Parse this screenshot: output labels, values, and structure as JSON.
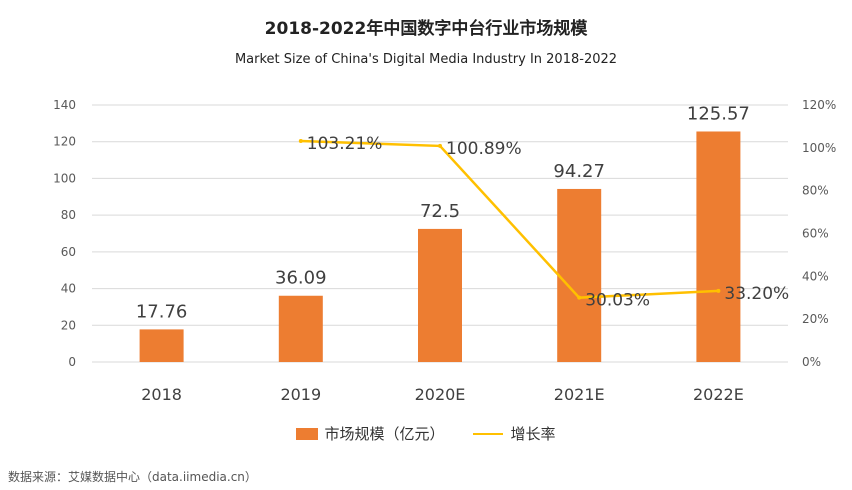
{
  "title": "2018-2022年中国数字中台行业市场规模",
  "subtitle": "Market Size of China's Digital Media Industry In 2018-2022",
  "source": "数据来源：艾媒数据中心（data.iimedia.cn）",
  "colors": {
    "bar": "#ed7d31",
    "line": "#ffc000",
    "grid": "#d9d9d9",
    "axis_text": "#595959",
    "label_text": "#404040"
  },
  "chart_data": {
    "type": "bar+line",
    "title": "2018-2022年中国数字中台行业市场规模",
    "subtitle": "Market Size of China's Digital Media Industry In 2018-2022",
    "categories": [
      "2018",
      "2019",
      "2020E",
      "2021E",
      "2022E"
    ],
    "series": [
      {
        "name": "市场规模（亿元）",
        "type": "bar",
        "axis": "left",
        "values": [
          17.76,
          36.09,
          72.5,
          94.27,
          125.57
        ],
        "labels": [
          "17.76",
          "36.09",
          "72.5",
          "94.27",
          "125.57"
        ]
      },
      {
        "name": "增长率",
        "type": "line",
        "axis": "right",
        "points": [
          {
            "category": "2019",
            "value": 103.21,
            "label": "103.21%"
          },
          {
            "category": "2020E",
            "value": 100.89,
            "label": "100.89%"
          },
          {
            "category": "2021E",
            "value": 30.03,
            "label": "30.03%"
          },
          {
            "category": "2022E",
            "value": 33.2,
            "label": "33.20%"
          }
        ]
      }
    ],
    "y_left": {
      "min": 0,
      "max": 140,
      "ticks": [
        "0",
        "20",
        "40",
        "60",
        "80",
        "100",
        "120",
        "140"
      ]
    },
    "y_right": {
      "min": 0,
      "max": 120,
      "ticks": [
        "0%",
        "20%",
        "40%",
        "60%",
        "80%",
        "100%",
        "120%"
      ]
    },
    "grid": true,
    "legend": {
      "position": "bottom",
      "items": [
        "市场规模（亿元）",
        "增长率"
      ]
    }
  }
}
